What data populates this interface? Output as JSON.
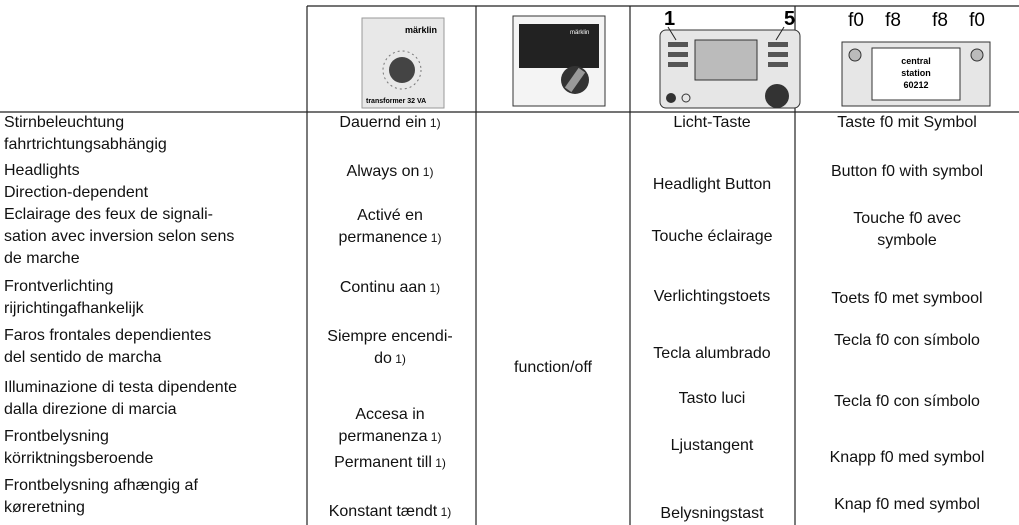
{
  "header": {
    "transformer": {
      "brand": "märklin",
      "model": "transformer 32 VA"
    },
    "control_unit": {
      "brand": "märklin"
    },
    "mobile_station": {
      "labels": [
        "1",
        "5"
      ]
    },
    "central_station": {
      "keys": [
        "f0",
        "f8",
        "f8",
        "f0"
      ],
      "name": [
        "central",
        "station",
        "60212"
      ]
    }
  },
  "columns": {
    "function": [
      [
        "Stirnbeleuchtung",
        "fahrtrichtungsabhängig"
      ],
      [
        "Headlights",
        "Direction-dependent"
      ],
      [
        "Eclairage des feux de signali-",
        "sation avec inversion selon sens",
        "de marche"
      ],
      [
        "Frontverlichting",
        "rijrichtingafhankelijk"
      ],
      [
        "Faros frontales dependientes",
        "del sentido de marcha"
      ],
      [
        "Illuminazione di testa dipendente",
        "dalla direzione di marcia"
      ],
      [
        "Frontbelysning",
        "körriktningsberoende"
      ],
      [
        "Frontbelysning afhængig af",
        "køreretning"
      ]
    ],
    "transformer": [
      {
        "text": [
          "Dauernd ein"
        ],
        "note": "1)"
      },
      {
        "text": [
          "Always on"
        ],
        "note": "1)"
      },
      {
        "text": [
          "Activé en",
          "permanence"
        ],
        "note": "1)"
      },
      {
        "text": [
          "Continu aan"
        ],
        "note": "1)"
      },
      {
        "text": [
          "Siempre encendi-",
          "do"
        ],
        "note": "1)"
      },
      {
        "text": [
          "Accesa in",
          "permanenza"
        ],
        "note": "1)"
      },
      {
        "text": [
          "Permanent till"
        ],
        "note": "1)"
      },
      {
        "text": [
          "Konstant tændt"
        ],
        "note": "1)"
      }
    ],
    "control_unit": "function/off",
    "mobile_station": [
      "Licht-Taste",
      "Headlight Button",
      "Touche éclairage",
      "Verlichtingstoets",
      "Tecla alumbrado",
      "Tasto luci",
      "Ljustangent",
      "Belysningstast"
    ],
    "central_station": [
      [
        "Taste f0 mit Symbol"
      ],
      [
        "Button f0 with symbol"
      ],
      [
        "Touche f0 avec",
        "symbole"
      ],
      [
        "Toets f0 met symbool"
      ],
      [
        "Tecla f0 con símbolo"
      ],
      [
        "Tecla f0 con símbolo"
      ],
      [
        "Knapp f0 med symbol"
      ],
      [
        "Knap f0 med symbol"
      ]
    ]
  }
}
